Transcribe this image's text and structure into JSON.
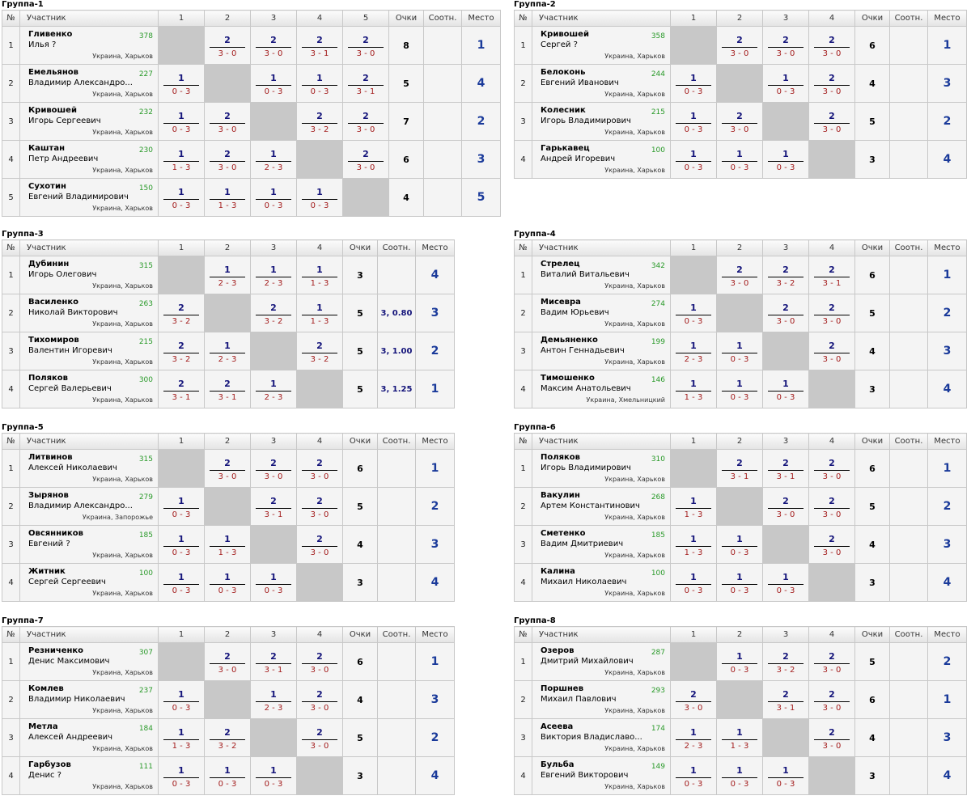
{
  "headers": {
    "num": "№",
    "participant": "Участник",
    "points": "Очки",
    "ratio": "Соотн.",
    "place": "Место"
  },
  "groups": [
    {
      "title": "Группа-1",
      "cols": [
        "1",
        "2",
        "3",
        "4",
        "5"
      ],
      "rows": [
        {
          "n": "1",
          "name": "Гливенко",
          "full": "Илья ?",
          "rating": "378",
          "loc": "Украина, Харьков",
          "res": [
            null,
            [
              "2",
              "3 - 0"
            ],
            [
              "2",
              "3 - 0"
            ],
            [
              "2",
              "3 - 1"
            ],
            [
              "2",
              "3 - 0"
            ]
          ],
          "points": "8",
          "ratio": "",
          "place": "1"
        },
        {
          "n": "2",
          "name": "Емельянов",
          "full": "Владимир Александро...",
          "rating": "227",
          "loc": "Украина, Харьков",
          "res": [
            [
              "1",
              "0 - 3"
            ],
            null,
            [
              "1",
              "0 - 3"
            ],
            [
              "1",
              "0 - 3"
            ],
            [
              "2",
              "3 - 1"
            ]
          ],
          "points": "5",
          "ratio": "",
          "place": "4"
        },
        {
          "n": "3",
          "name": "Кривошей",
          "full": "Игорь Сергеевич",
          "rating": "232",
          "loc": "Украина, Харьков",
          "res": [
            [
              "1",
              "0 - 3"
            ],
            [
              "2",
              "3 - 0"
            ],
            null,
            [
              "2",
              "3 - 2"
            ],
            [
              "2",
              "3 - 0"
            ]
          ],
          "points": "7",
          "ratio": "",
          "place": "2"
        },
        {
          "n": "4",
          "name": "Каштан",
          "full": "Петр Андреевич",
          "rating": "230",
          "loc": "Украина, Харьков",
          "res": [
            [
              "1",
              "1 - 3"
            ],
            [
              "2",
              "3 - 0"
            ],
            [
              "1",
              "2 - 3"
            ],
            null,
            [
              "2",
              "3 - 0"
            ]
          ],
          "points": "6",
          "ratio": "",
          "place": "3"
        },
        {
          "n": "5",
          "name": "Сухотин",
          "full": "Евгений Владимирович",
          "rating": "150",
          "loc": "Украина, Харьков",
          "res": [
            [
              "1",
              "0 - 3"
            ],
            [
              "1",
              "1 - 3"
            ],
            [
              "1",
              "0 - 3"
            ],
            [
              "1",
              "0 - 3"
            ],
            null
          ],
          "points": "4",
          "ratio": "",
          "place": "5"
        }
      ]
    },
    {
      "title": "Группа-2",
      "cols": [
        "1",
        "2",
        "3",
        "4"
      ],
      "rows": [
        {
          "n": "1",
          "name": "Кривошей",
          "full": "Сергей ?",
          "rating": "358",
          "loc": "Украина, Харьков",
          "res": [
            null,
            [
              "2",
              "3 - 0"
            ],
            [
              "2",
              "3 - 0"
            ],
            [
              "2",
              "3 - 0"
            ]
          ],
          "points": "6",
          "ratio": "",
          "place": "1"
        },
        {
          "n": "2",
          "name": "Белоконь",
          "full": "Евгений Иванович",
          "rating": "244",
          "loc": "Украина, Харьков",
          "res": [
            [
              "1",
              "0 - 3"
            ],
            null,
            [
              "1",
              "0 - 3"
            ],
            [
              "2",
              "3 - 0"
            ]
          ],
          "points": "4",
          "ratio": "",
          "place": "3"
        },
        {
          "n": "3",
          "name": "Колесник",
          "full": "Игорь Владимирович",
          "rating": "215",
          "loc": "Украина, Харьков",
          "res": [
            [
              "1",
              "0 - 3"
            ],
            [
              "2",
              "3 - 0"
            ],
            null,
            [
              "2",
              "3 - 0"
            ]
          ],
          "points": "5",
          "ratio": "",
          "place": "2"
        },
        {
          "n": "4",
          "name": "Гарькавец",
          "full": "Андрей Игоревич",
          "rating": "100",
          "loc": "Украина, Харьков",
          "res": [
            [
              "1",
              "0 - 3"
            ],
            [
              "1",
              "0 - 3"
            ],
            [
              "1",
              "0 - 3"
            ],
            null
          ],
          "points": "3",
          "ratio": "",
          "place": "4"
        }
      ]
    },
    {
      "title": "Группа-3",
      "cols": [
        "1",
        "2",
        "3",
        "4"
      ],
      "rows": [
        {
          "n": "1",
          "name": "Дубинин",
          "full": "Игорь Олегович",
          "rating": "315",
          "loc": "Украина, Харьков",
          "res": [
            null,
            [
              "1",
              "2 - 3"
            ],
            [
              "1",
              "2 - 3"
            ],
            [
              "1",
              "1 - 3"
            ]
          ],
          "points": "3",
          "ratio": "",
          "place": "4"
        },
        {
          "n": "2",
          "name": "Василенко",
          "full": "Николай Викторович",
          "rating": "263",
          "loc": "Украина, Харьков",
          "res": [
            [
              "2",
              "3 - 2"
            ],
            null,
            [
              "2",
              "3 - 2"
            ],
            [
              "1",
              "1 - 3"
            ]
          ],
          "points": "5",
          "ratio": "3, 0.80",
          "place": "3"
        },
        {
          "n": "3",
          "name": "Тихомиров",
          "full": "Валентин Игоревич",
          "rating": "215",
          "loc": "Украина, Харьков",
          "res": [
            [
              "2",
              "3 - 2"
            ],
            [
              "1",
              "2 - 3"
            ],
            null,
            [
              "2",
              "3 - 2"
            ]
          ],
          "points": "5",
          "ratio": "3, 1.00",
          "place": "2"
        },
        {
          "n": "4",
          "name": "Поляков",
          "full": "Сергей Валерьевич",
          "rating": "300",
          "loc": "Украина, Харьков",
          "res": [
            [
              "2",
              "3 - 1"
            ],
            [
              "2",
              "3 - 1"
            ],
            [
              "1",
              "2 - 3"
            ],
            null
          ],
          "points": "5",
          "ratio": "3, 1.25",
          "place": "1"
        }
      ]
    },
    {
      "title": "Группа-4",
      "cols": [
        "1",
        "2",
        "3",
        "4"
      ],
      "rows": [
        {
          "n": "1",
          "name": "Стрелец",
          "full": "Виталий Витальевич",
          "rating": "342",
          "loc": "Украина, Харьков",
          "res": [
            null,
            [
              "2",
              "3 - 0"
            ],
            [
              "2",
              "3 - 2"
            ],
            [
              "2",
              "3 - 1"
            ]
          ],
          "points": "6",
          "ratio": "",
          "place": "1"
        },
        {
          "n": "2",
          "name": "Мисевра",
          "full": "Вадим Юрьевич",
          "rating": "274",
          "loc": "Украина, Харьков",
          "res": [
            [
              "1",
              "0 - 3"
            ],
            null,
            [
              "2",
              "3 - 0"
            ],
            [
              "2",
              "3 - 0"
            ]
          ],
          "points": "5",
          "ratio": "",
          "place": "2"
        },
        {
          "n": "3",
          "name": "Демьяненко",
          "full": "Антон Геннадьевич",
          "rating": "199",
          "loc": "Украина, Харьков",
          "res": [
            [
              "1",
              "2 - 3"
            ],
            [
              "1",
              "0 - 3"
            ],
            null,
            [
              "2",
              "3 - 0"
            ]
          ],
          "points": "4",
          "ratio": "",
          "place": "3"
        },
        {
          "n": "4",
          "name": "Тимошенко",
          "full": "Максим Анатольевич",
          "rating": "146",
          "loc": "Украина, Хмельницкий",
          "res": [
            [
              "1",
              "1 - 3"
            ],
            [
              "1",
              "0 - 3"
            ],
            [
              "1",
              "0 - 3"
            ],
            null
          ],
          "points": "3",
          "ratio": "",
          "place": "4"
        }
      ]
    },
    {
      "title": "Группа-5",
      "cols": [
        "1",
        "2",
        "3",
        "4"
      ],
      "rows": [
        {
          "n": "1",
          "name": "Литвинов",
          "full": "Алексей Николаевич",
          "rating": "315",
          "loc": "Украина, Харьков",
          "res": [
            null,
            [
              "2",
              "3 - 0"
            ],
            [
              "2",
              "3 - 0"
            ],
            [
              "2",
              "3 - 0"
            ]
          ],
          "points": "6",
          "ratio": "",
          "place": "1"
        },
        {
          "n": "2",
          "name": "Зырянов",
          "full": "Владимир Александро...",
          "rating": "279",
          "loc": "Украина, Запорожье",
          "res": [
            [
              "1",
              "0 - 3"
            ],
            null,
            [
              "2",
              "3 - 1"
            ],
            [
              "2",
              "3 - 0"
            ]
          ],
          "points": "5",
          "ratio": "",
          "place": "2"
        },
        {
          "n": "3",
          "name": "Овсянников",
          "full": "Евгений ?",
          "rating": "185",
          "loc": "Украина, Харьков",
          "res": [
            [
              "1",
              "0 - 3"
            ],
            [
              "1",
              "1 - 3"
            ],
            null,
            [
              "2",
              "3 - 0"
            ]
          ],
          "points": "4",
          "ratio": "",
          "place": "3"
        },
        {
          "n": "4",
          "name": "Житник",
          "full": "Сергей Сергеевич",
          "rating": "100",
          "loc": "Украина, Харьков",
          "res": [
            [
              "1",
              "0 - 3"
            ],
            [
              "1",
              "0 - 3"
            ],
            [
              "1",
              "0 - 3"
            ],
            null
          ],
          "points": "3",
          "ratio": "",
          "place": "4"
        }
      ]
    },
    {
      "title": "Группа-6",
      "cols": [
        "1",
        "2",
        "3",
        "4"
      ],
      "rows": [
        {
          "n": "1",
          "name": "Поляков",
          "full": "Игорь Владимирович",
          "rating": "310",
          "loc": "Украина, Харьков",
          "res": [
            null,
            [
              "2",
              "3 - 1"
            ],
            [
              "2",
              "3 - 1"
            ],
            [
              "2",
              "3 - 0"
            ]
          ],
          "points": "6",
          "ratio": "",
          "place": "1"
        },
        {
          "n": "2",
          "name": "Вакулин",
          "full": "Артем Константинович",
          "rating": "268",
          "loc": "Украина, Харьков",
          "res": [
            [
              "1",
              "1 - 3"
            ],
            null,
            [
              "2",
              "3 - 0"
            ],
            [
              "2",
              "3 - 0"
            ]
          ],
          "points": "5",
          "ratio": "",
          "place": "2"
        },
        {
          "n": "3",
          "name": "Сметенко",
          "full": "Вадим Дмитриевич",
          "rating": "185",
          "loc": "Украина, Харьков",
          "res": [
            [
              "1",
              "1 - 3"
            ],
            [
              "1",
              "0 - 3"
            ],
            null,
            [
              "2",
              "3 - 0"
            ]
          ],
          "points": "4",
          "ratio": "",
          "place": "3"
        },
        {
          "n": "4",
          "name": "Калина",
          "full": "Михаил Николаевич",
          "rating": "100",
          "loc": "Украина, Харьков",
          "res": [
            [
              "1",
              "0 - 3"
            ],
            [
              "1",
              "0 - 3"
            ],
            [
              "1",
              "0 - 3"
            ],
            null
          ],
          "points": "3",
          "ratio": "",
          "place": "4"
        }
      ]
    },
    {
      "title": "Группа-7",
      "cols": [
        "1",
        "2",
        "3",
        "4"
      ],
      "rows": [
        {
          "n": "1",
          "name": "Резниченко",
          "full": "Денис Максимович",
          "rating": "307",
          "loc": "Украина, Харьков",
          "res": [
            null,
            [
              "2",
              "3 - 0"
            ],
            [
              "2",
              "3 - 1"
            ],
            [
              "2",
              "3 - 0"
            ]
          ],
          "points": "6",
          "ratio": "",
          "place": "1"
        },
        {
          "n": "2",
          "name": "Комлев",
          "full": "Владимир Николаевич",
          "rating": "237",
          "loc": "Украина, Харьков",
          "res": [
            [
              "1",
              "0 - 3"
            ],
            null,
            [
              "1",
              "2 - 3"
            ],
            [
              "2",
              "3 - 0"
            ]
          ],
          "points": "4",
          "ratio": "",
          "place": "3"
        },
        {
          "n": "3",
          "name": "Метла",
          "full": "Алексей Андреевич",
          "rating": "184",
          "loc": "Украина, Харьков",
          "res": [
            [
              "1",
              "1 - 3"
            ],
            [
              "2",
              "3 - 2"
            ],
            null,
            [
              "2",
              "3 - 0"
            ]
          ],
          "points": "5",
          "ratio": "",
          "place": "2"
        },
        {
          "n": "4",
          "name": "Гарбузов",
          "full": "Денис ?",
          "rating": "111",
          "loc": "Украина, Харьков",
          "res": [
            [
              "1",
              "0 - 3"
            ],
            [
              "1",
              "0 - 3"
            ],
            [
              "1",
              "0 - 3"
            ],
            null
          ],
          "points": "3",
          "ratio": "",
          "place": "4"
        }
      ]
    },
    {
      "title": "Группа-8",
      "cols": [
        "1",
        "2",
        "3",
        "4"
      ],
      "rows": [
        {
          "n": "1",
          "name": "Озеров",
          "full": "Дмитрий Михайлович",
          "rating": "287",
          "loc": "Украина, Харьков",
          "res": [
            null,
            [
              "1",
              "0 - 3"
            ],
            [
              "2",
              "3 - 2"
            ],
            [
              "2",
              "3 - 0"
            ]
          ],
          "points": "5",
          "ratio": "",
          "place": "2"
        },
        {
          "n": "2",
          "name": "Поршнев",
          "full": "Михаил Павлович",
          "rating": "293",
          "loc": "Украина, Харьков",
          "res": [
            [
              "2",
              "3 - 0"
            ],
            null,
            [
              "2",
              "3 - 1"
            ],
            [
              "2",
              "3 - 0"
            ]
          ],
          "points": "6",
          "ratio": "",
          "place": "1"
        },
        {
          "n": "3",
          "name": "Асеева",
          "full": "Виктория Владиславо...",
          "rating": "174",
          "loc": "Украина, Харьков",
          "res": [
            [
              "1",
              "2 - 3"
            ],
            [
              "1",
              "1 - 3"
            ],
            null,
            [
              "2",
              "3 - 0"
            ]
          ],
          "points": "4",
          "ratio": "",
          "place": "3"
        },
        {
          "n": "4",
          "name": "Бульба",
          "full": "Евгений Викторович",
          "rating": "149",
          "loc": "Украина, Харьков",
          "res": [
            [
              "1",
              "0 - 3"
            ],
            [
              "1",
              "0 - 3"
            ],
            [
              "1",
              "0 - 3"
            ],
            null
          ],
          "points": "3",
          "ratio": "",
          "place": "4"
        }
      ]
    }
  ]
}
